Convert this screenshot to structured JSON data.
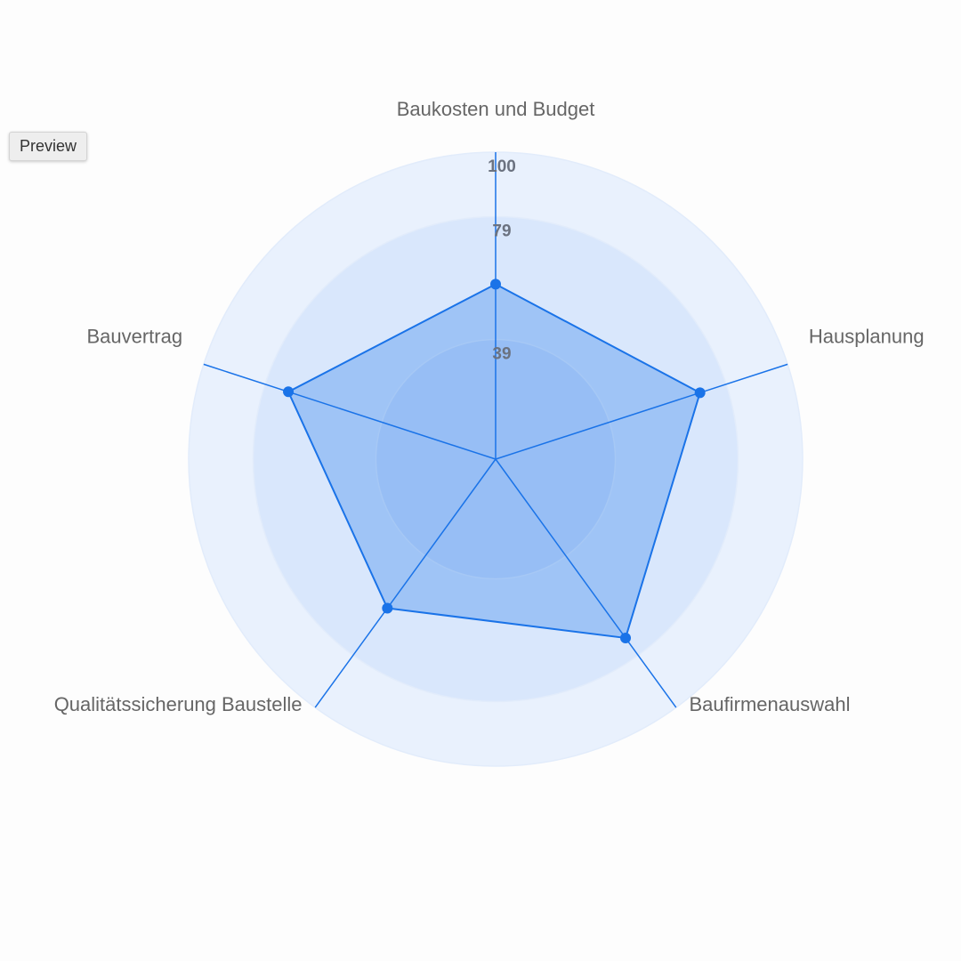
{
  "preview_button": "Preview",
  "chart_data": {
    "type": "radar",
    "categories": [
      "Baukosten und Budget",
      "Hausplanung",
      "Baufirmenauswahl",
      "Qualitätssicherung Baustelle",
      "Bauvertrag"
    ],
    "values": [
      57,
      70,
      72,
      60,
      71
    ],
    "color": "#1a73e8",
    "rlim": [
      0,
      100
    ],
    "rticks": [
      39,
      79,
      100
    ]
  }
}
